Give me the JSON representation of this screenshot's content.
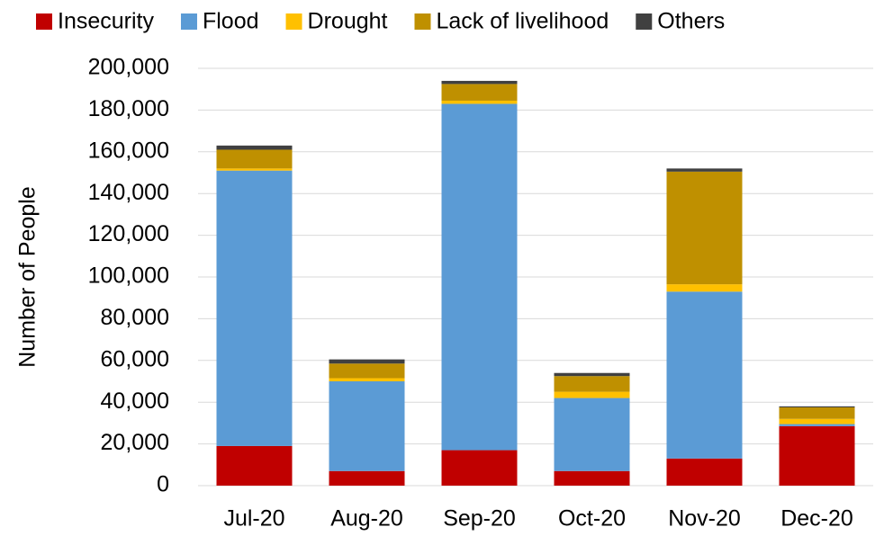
{
  "chart_data": {
    "type": "stacked_bar",
    "y_label": "Number of People",
    "categories": [
      "Jul-20",
      "Aug-20",
      "Sep-20",
      "Oct-20",
      "Nov-20",
      "Dec-20"
    ],
    "series": [
      {
        "name": "Insecurity",
        "color": "#c00000",
        "values": [
          19000,
          7000,
          17000,
          7000,
          13000,
          28500
        ]
      },
      {
        "name": "Flood",
        "color": "#5b9bd5",
        "values": [
          132000,
          43000,
          166000,
          35000,
          80000,
          1000
        ]
      },
      {
        "name": "Drought",
        "color": "#ffc000",
        "values": [
          1000,
          1500,
          1500,
          3000,
          3500,
          2500
        ]
      },
      {
        "name": "Lack of livelihood",
        "color": "#bf9000",
        "values": [
          9000,
          7000,
          8000,
          7500,
          54000,
          5500
        ]
      },
      {
        "name": "Others",
        "color": "#404040",
        "values": [
          2000,
          2000,
          1500,
          1500,
          1500,
          500
        ]
      }
    ],
    "ylim": [
      0,
      200000
    ],
    "yticks": [
      0,
      {
        "value": 20000,
        "label": "20,000"
      },
      {
        "value": 40000,
        "label": "40,000"
      },
      {
        "value": 60000,
        "label": "60,000"
      },
      {
        "value": 80000,
        "label": "80,000"
      },
      {
        "value": 100000,
        "label": "100,000"
      },
      {
        "value": 120000,
        "label": "120,000"
      },
      {
        "value": 140000,
        "label": "140,000"
      },
      {
        "value": 160000,
        "label": "160,000"
      },
      {
        "value": 180000,
        "label": "180,000"
      },
      {
        "value": 200000,
        "label": "200,000"
      }
    ],
    "grid": true,
    "legend": "top"
  }
}
